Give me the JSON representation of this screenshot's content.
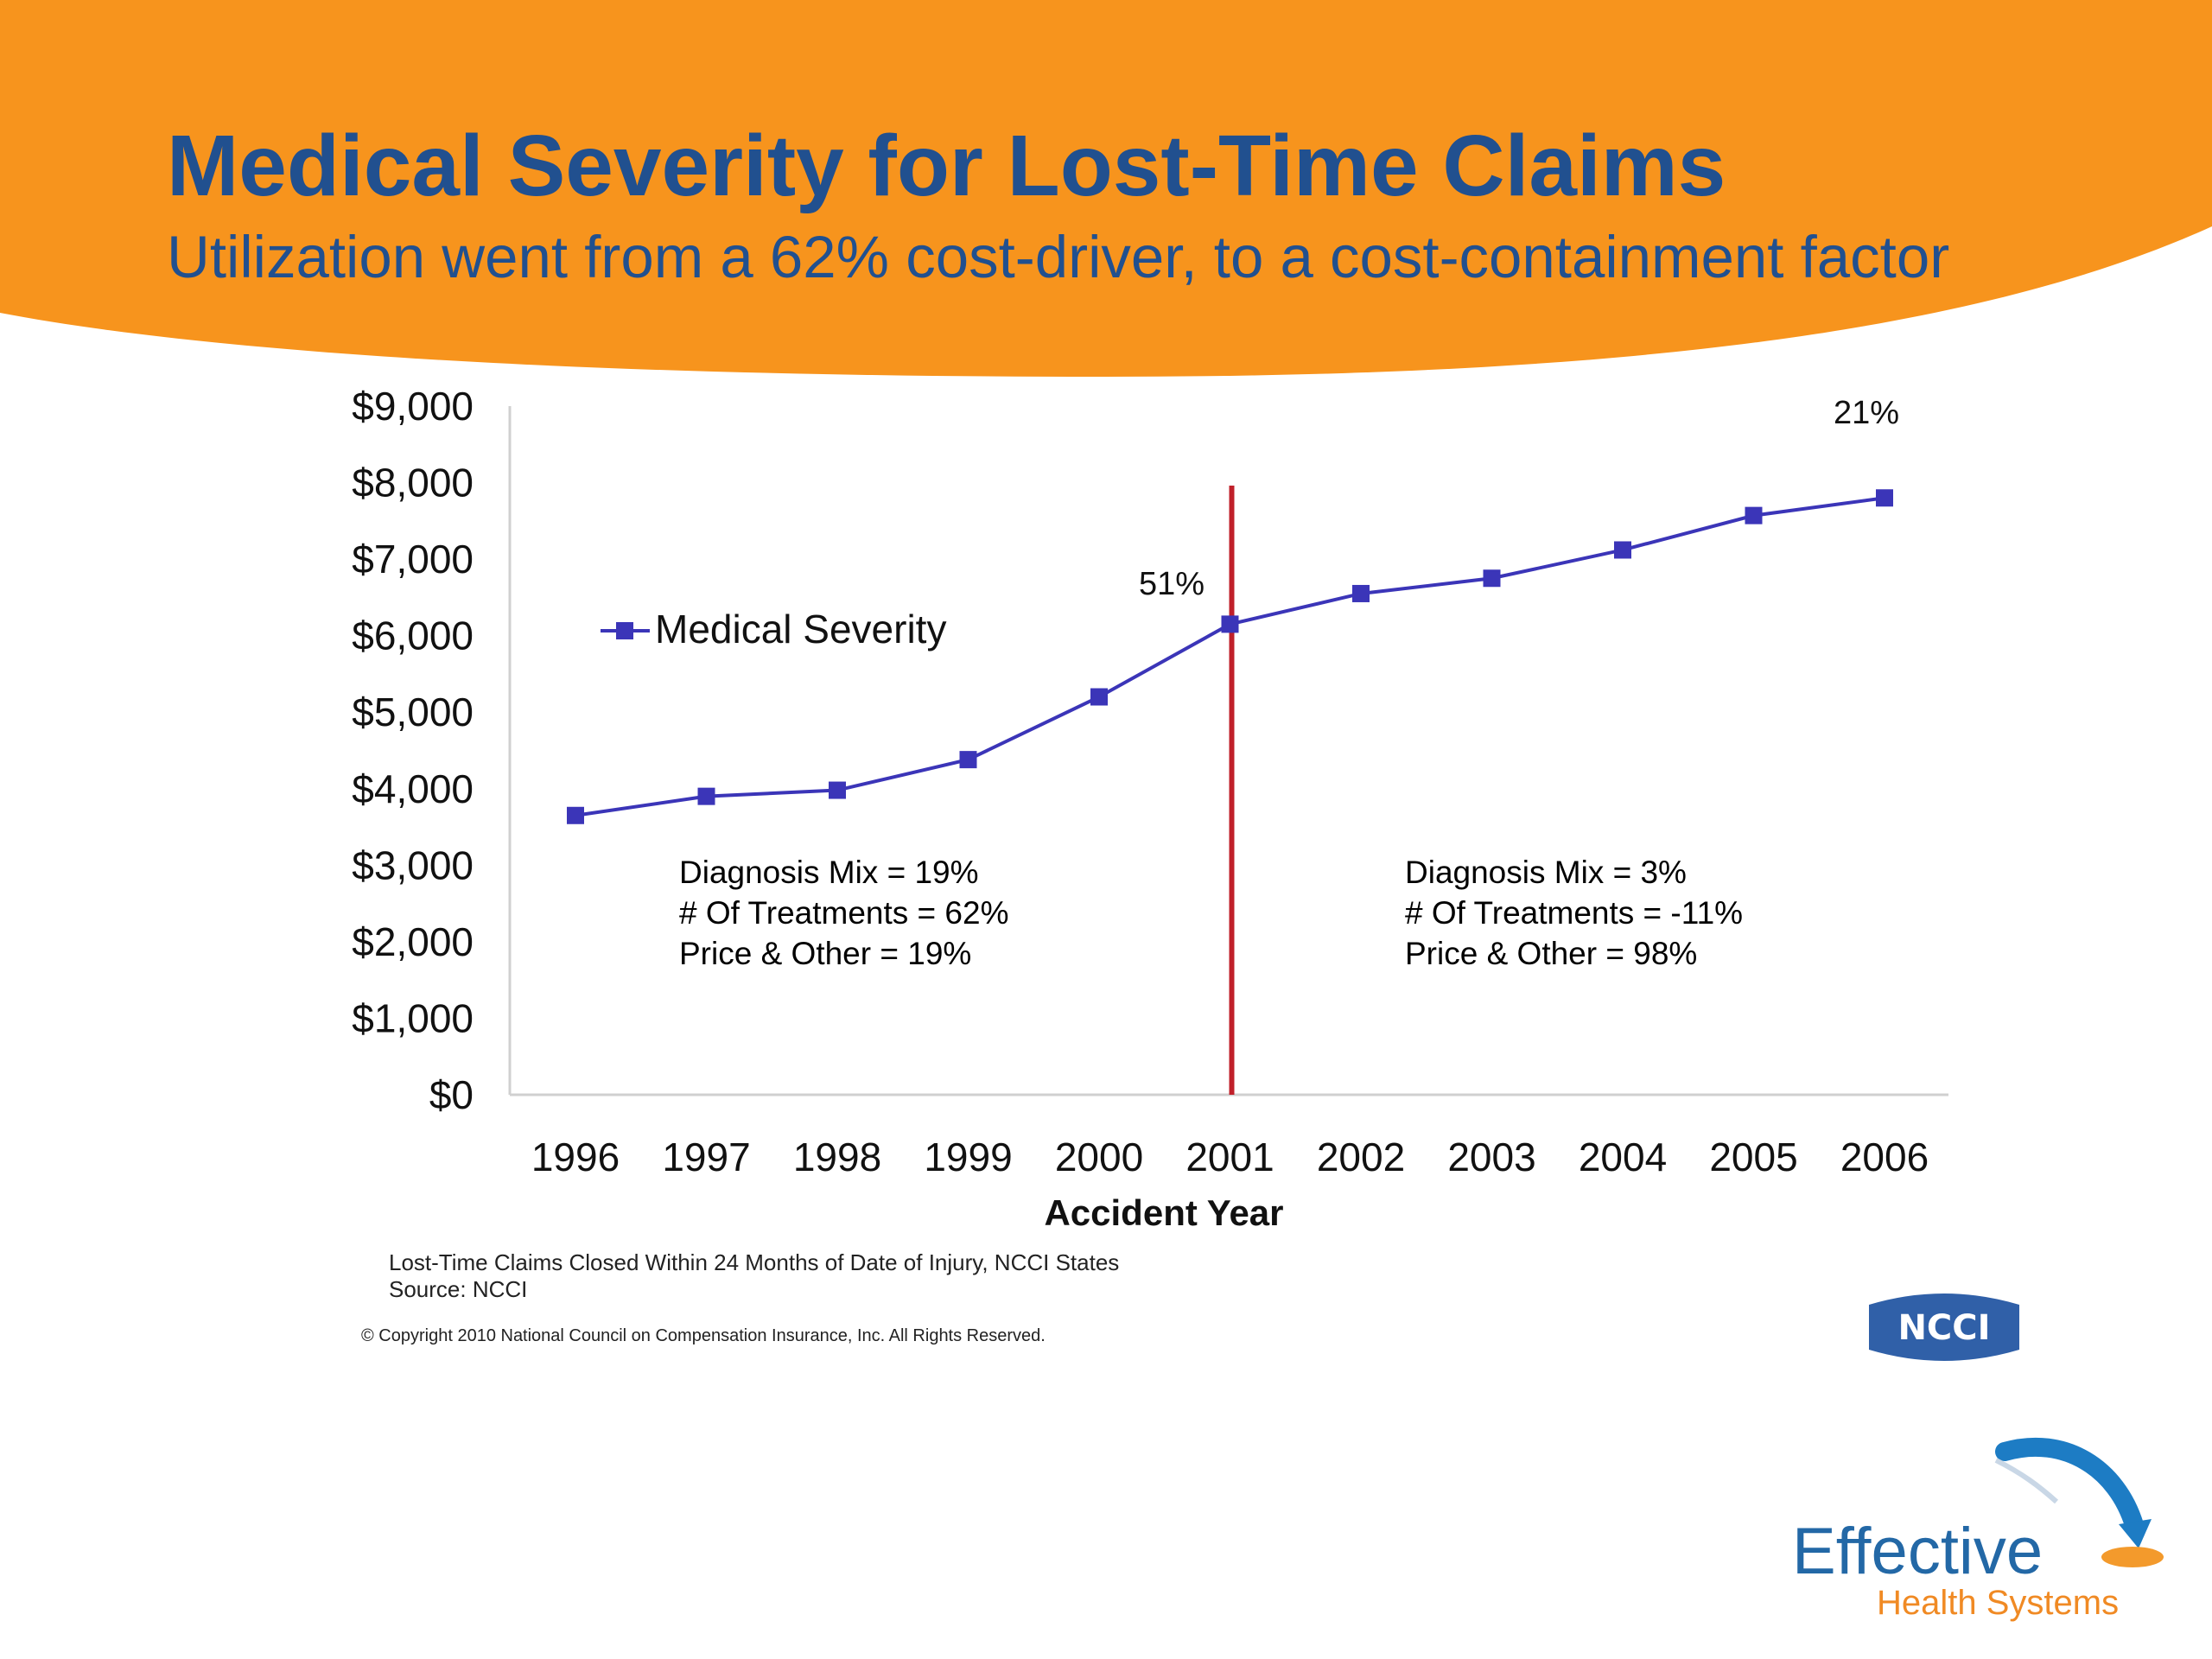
{
  "header": {
    "title": "Medical Severity for Lost-Time Claims",
    "subtitle": "Utilization went from a 62% cost-driver, to a cost-containment factor",
    "banner_color": "#f7941d",
    "title_color": "#21508f"
  },
  "chart_data": {
    "type": "line",
    "title": "",
    "xlabel": "Accident Year",
    "ylabel": "",
    "categories": [
      "1996",
      "1997",
      "1998",
      "1999",
      "2000",
      "2001",
      "2002",
      "2003",
      "2004",
      "2005",
      "2006"
    ],
    "y_ticks": [
      "$0",
      "$1,000",
      "$2,000",
      "$3,000",
      "$4,000",
      "$5,000",
      "$6,000",
      "$7,000",
      "$8,000",
      "$9,000"
    ],
    "ylim": [
      0,
      9000
    ],
    "series": [
      {
        "name": "Medical Severity",
        "color": "#3b35b8",
        "values": [
          3650,
          3900,
          3980,
          4380,
          5200,
          6150,
          6550,
          6750,
          7120,
          7570,
          7800
        ]
      }
    ],
    "legend_position": "left",
    "grid": false,
    "divider": {
      "x": "2001",
      "color": "#c0202a"
    },
    "annotations": [
      {
        "label": "51%",
        "near": "2001"
      },
      {
        "label": "21%",
        "near": "2006"
      }
    ],
    "note_boxes": [
      {
        "lines": [
          "Diagnosis Mix = 19%",
          "# Of Treatments = 62%",
          "Price & Other = 19%"
        ]
      },
      {
        "lines": [
          "Diagnosis Mix = 3%",
          "# Of Treatments = -11%",
          "Price & Other = 98%"
        ]
      }
    ]
  },
  "footnotes": {
    "line1": "Lost-Time Claims Closed Within 24 Months of Date of Injury, NCCI States",
    "line2": "Source: NCCI",
    "copyright": "© Copyright 2010 National Council on Compensation Insurance, Inc. All Rights Reserved."
  },
  "logos": {
    "ncci": "NCCI",
    "ncci_color": "#3060a8",
    "ehs_word": "Effective",
    "ehs_sub": "Health Systems"
  }
}
